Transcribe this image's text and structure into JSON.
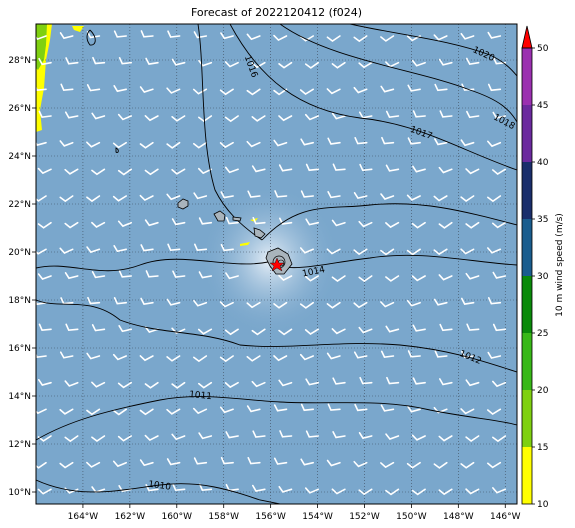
{
  "title": "Forecast of 2022120412 (f024)",
  "colorbar": {
    "label": "10 m wind speed (m/s)",
    "ticks": [
      "10",
      "15",
      "20",
      "25",
      "30",
      "35",
      "40",
      "45",
      "50"
    ],
    "bins": [
      {
        "from": 10,
        "to": 15,
        "color": "#ffff00"
      },
      {
        "from": 15,
        "to": 20,
        "color": "#7fd010"
      },
      {
        "from": 20,
        "to": 25,
        "color": "#38b818"
      },
      {
        "from": 25,
        "to": 30,
        "color": "#0a8a0a"
      },
      {
        "from": 30,
        "to": 35,
        "color": "#1a5d8e"
      },
      {
        "from": 35,
        "to": 40,
        "color": "#1a2e6b"
      },
      {
        "from": 40,
        "to": 45,
        "color": "#6b2a9e"
      },
      {
        "from": 45,
        "to": 50,
        "color": "#9b30b0"
      }
    ],
    "extend_color": "#ff0000"
  },
  "map": {
    "lon_range": [
      -166,
      -145.5
    ],
    "lat_range": [
      9.5,
      29.5
    ],
    "lon_ticks": [
      "164°W",
      "162°W",
      "160°W",
      "158°W",
      "156°W",
      "154°W",
      "152°W",
      "150°W",
      "148°W",
      "146°W"
    ],
    "lat_ticks": [
      "10°N",
      "12°N",
      "14°N",
      "16°N",
      "18°N",
      "20°N",
      "22°N",
      "24°N",
      "26°N",
      "28°N"
    ],
    "ocean_color": "#7aa7cc",
    "grid": "dotted",
    "storm_marker": {
      "lon": -155.5,
      "lat": 19.6,
      "color": "#ff0000"
    },
    "pressure_contours": [
      "1010",
      "1011",
      "1012",
      "1014",
      "1016",
      "1017",
      "1018",
      "1020"
    ]
  }
}
